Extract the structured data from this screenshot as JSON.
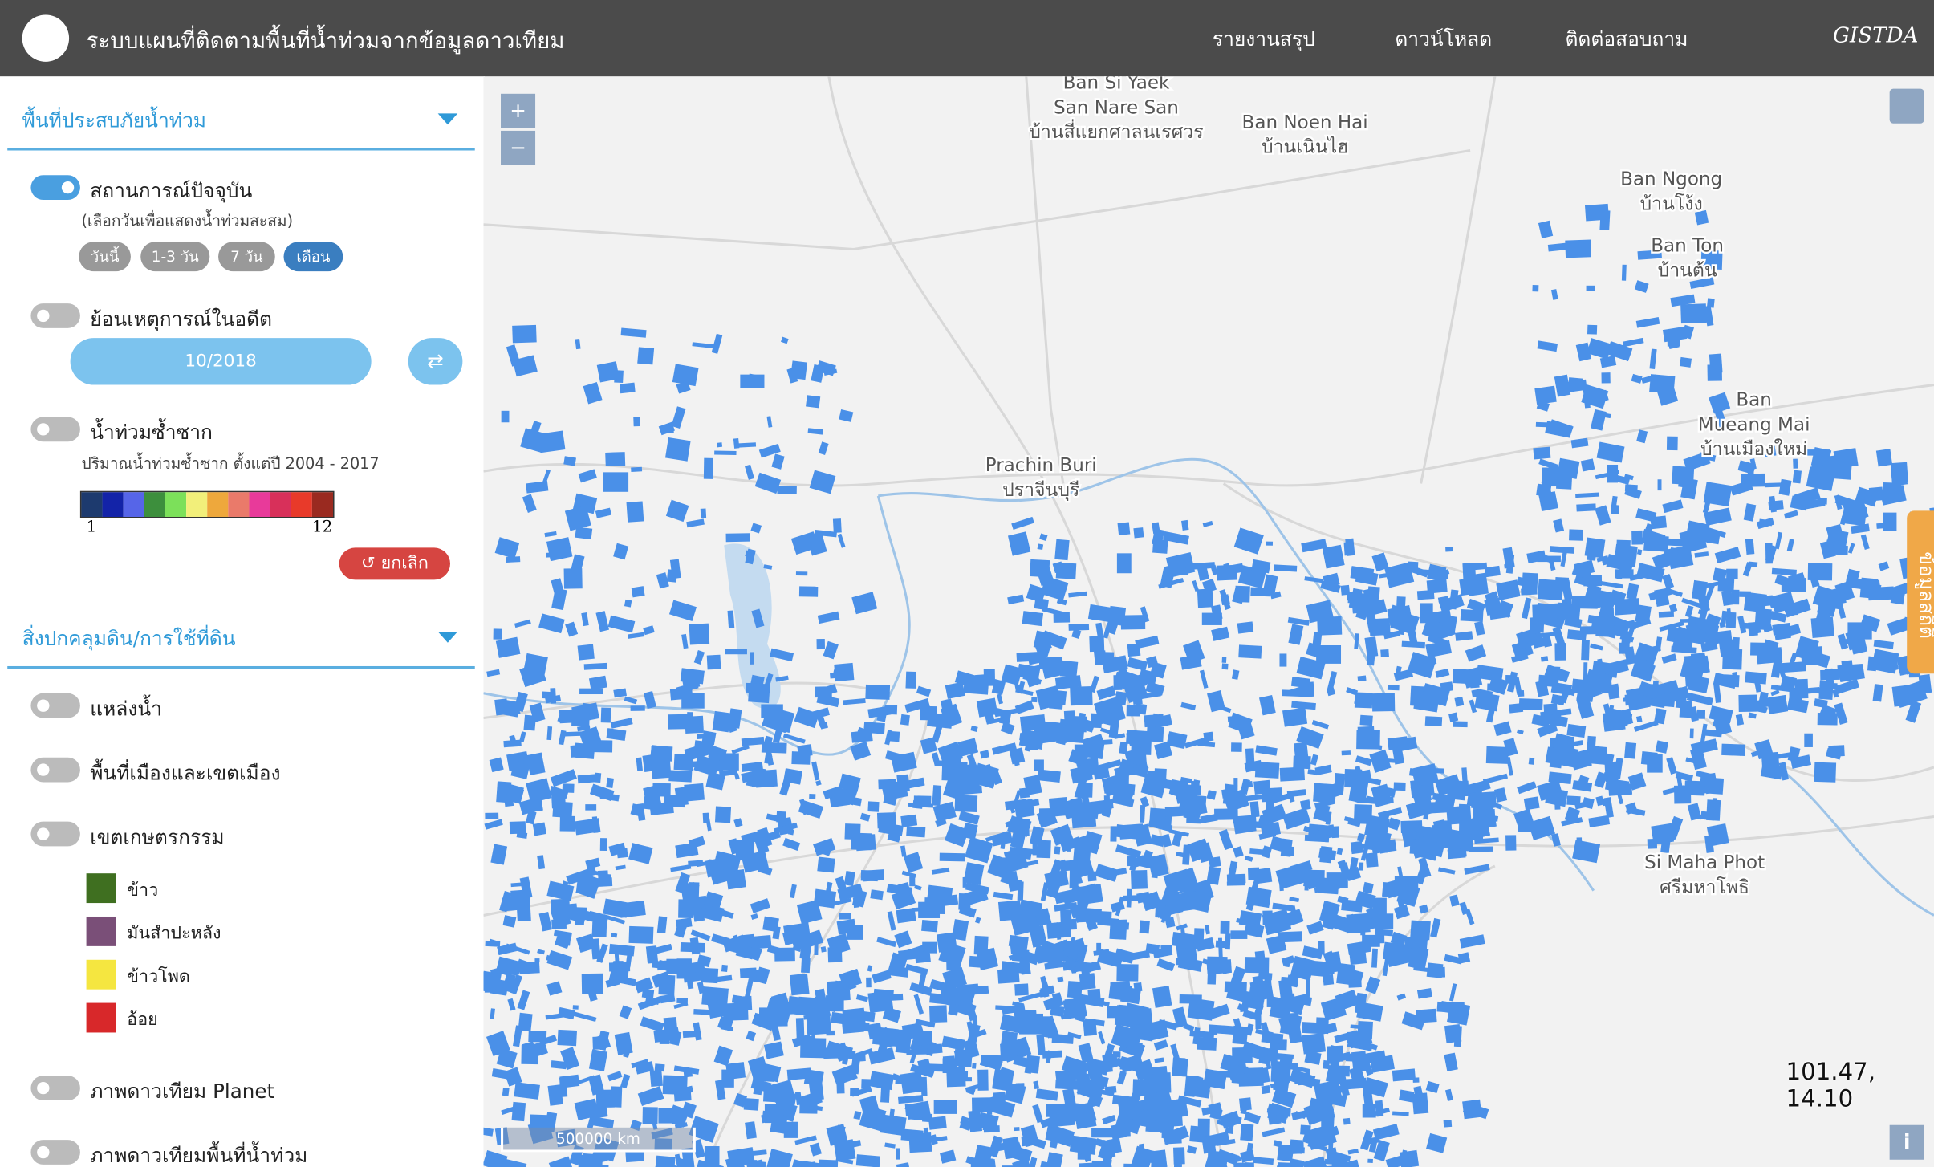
{
  "header": {
    "title": "ระบบแผนที่ติดตามพื้นที่น้ำท่วมจากข้อมูลดาวเทียม",
    "nav": [
      "รายงานสรุป",
      "ดาวน์โหลด",
      "ติดต่อสอบถาม"
    ],
    "brand": "GISTDA"
  },
  "sidebar": {
    "flood_section": {
      "title": "พื้นที่ประสบภัยน้ำท่วม",
      "current": {
        "label": "สถานการณ์ปัจจุบัน",
        "hint": "(เลือกวันเพื่อแสดงน้ำท่วมสะสม)",
        "periods": [
          "วันนี้",
          "1-3 วัน",
          "7 วัน",
          "เดือน"
        ]
      },
      "past": {
        "label": "ย้อนเหตุการณ์ในอดีต",
        "date": "10/2018"
      },
      "repeat": {
        "label": "น้ำท่วมซ้ำซาก",
        "hint": "ปริมาณน้ำท่วมซ้ำซาก ตั้งแต่ปี 2004 - 2017",
        "scale_min": "1",
        "scale_max": "12",
        "cancel": "ยกเลิก"
      }
    },
    "landuse_section": {
      "title": "สิ่งปกคลุมดิน/การใช้ที่ดิน",
      "layers": [
        "แหล่งน้ำ",
        "พื้นที่เมืองและเขตเมือง",
        "เขตเกษตรกรรม"
      ],
      "crops": [
        "ข้าว",
        "มันสำปะหลัง",
        "ข้าวโพด",
        "อ้อย"
      ],
      "extra_layers": [
        "ภาพดาวเทียม Planet",
        "ภาพดาวเทียมพื้นที่น้ำท่วม"
      ]
    }
  },
  "map": {
    "labels": [
      [
        "Ban Si Yaek",
        "San Nare San",
        "บ้านสี่แยกศาลนเรศวร"
      ],
      [
        "Ban Noen Hai",
        "บ้านเนินไฮ"
      ],
      [
        "Ban Ngong",
        "บ้านโง้ง"
      ],
      [
        "Ban Ton",
        "บ้านต้น"
      ],
      [
        "Ban",
        "Mueang Mai",
        "บ้านเมืองใหม่"
      ],
      [
        "Prachin Buri",
        "ปราจีนบุรี"
      ],
      [
        "Si Maha Phot",
        "ศรีมหาโพธิ"
      ]
    ],
    "coordinates": "101.47, 14.10",
    "scale": "500000 km",
    "side_tab": "ข้อมูลสถิติ"
  }
}
